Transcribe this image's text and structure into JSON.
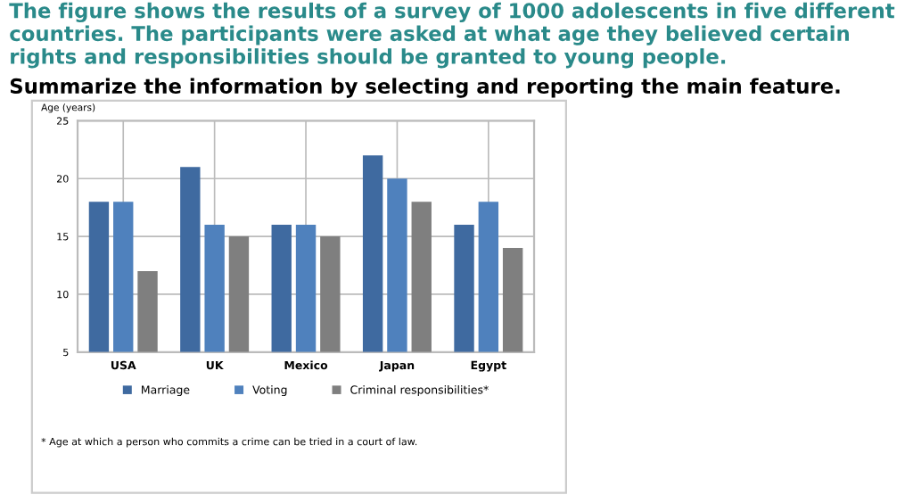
{
  "chart_data": {
    "type": "bar",
    "title": "The figure shows the results of a survey of 1000 adolescents in five different countries. The participants were asked at what age they believed certain rights and responsibilities should be granted to young people.",
    "subtitle": "Summarize the information by selecting and reporting the main feature.",
    "ylabel": "Age (years)",
    "categories": [
      "USA",
      "UK",
      "Mexico",
      "Japan",
      "Egypt"
    ],
    "series": [
      {
        "name": "Marriage",
        "color": "#3f6aa0",
        "values": [
          18,
          21,
          16,
          22,
          16
        ]
      },
      {
        "name": "Voting",
        "color": "#4f81bd",
        "values": [
          18,
          16,
          16,
          20,
          18
        ]
      },
      {
        "name": "Criminal responsibilities*",
        "color": "#7f7f7f",
        "values": [
          12,
          15,
          15,
          18,
          14
        ]
      }
    ],
    "ylim": [
      5,
      25
    ],
    "yticks": [
      5,
      10,
      15,
      20,
      25
    ],
    "grid": true,
    "legend": "bottom",
    "annotations": [
      "* Age at which a person who commits a crime can be tried in a court of law."
    ]
  }
}
